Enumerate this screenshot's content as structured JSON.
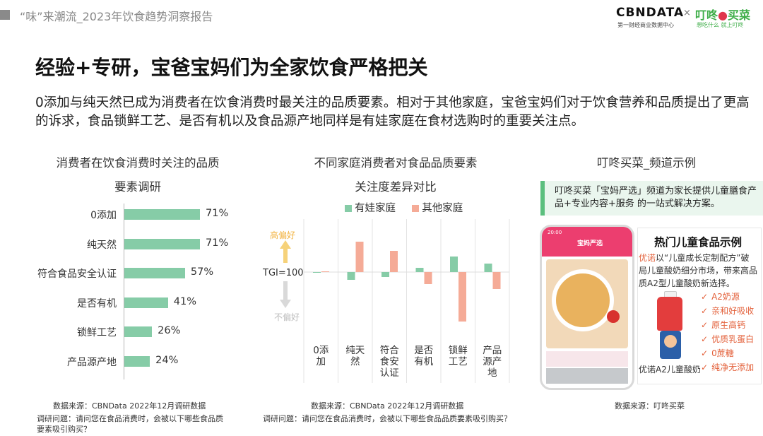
{
  "header": {
    "report_title": "“味”来潮流_2023年饮食趋势洞察报告",
    "logo_cbn": "CBNDATA",
    "logo_cbn_sub": "第一财经商业数据中心",
    "logo_x": "×",
    "logo_dd_a": "叮咚",
    "logo_dd_b": "买菜",
    "logo_dd_sub": "想吃什么 就上叮咚"
  },
  "main_title": "经验+专研，宝爸宝妈们为全家饮食严格把关",
  "intro_text": "0添加与纯天然已成为消费者在饮食消费时最关注的品质要素。相对于其他家庭，宝爸宝妈们对于饮食营养和品质提出了更高的诉求，食品锁鲜工艺、是否有机以及食品源产地同样是有娃家庭在食材选购时的重要关注点。",
  "colors": {
    "green": "#86cca7",
    "salmon": "#f5ab97",
    "accent": "#5bbf7e",
    "orange": "#e3603a"
  },
  "chart_data": [
    {
      "type": "bar",
      "orientation": "horizontal",
      "title_line1": "消费者在饮食消费时关注的品质",
      "title_line2": "要素调研",
      "categories": [
        "0添加",
        "纯天然",
        "符合食品安全认证",
        "是否有机",
        "锁鲜工艺",
        "产品源产地"
      ],
      "values": [
        71,
        71,
        57,
        41,
        26,
        24
      ],
      "value_labels": [
        "71%",
        "71%",
        "57%",
        "41%",
        "26%",
        "24%"
      ],
      "xlim": [
        0,
        100
      ],
      "source": "数据来源：CBNData 2022年12月调研数据",
      "question": "调研问题：请问您在食品消费时，会被以下哪些食品质要素吸引购买？"
    },
    {
      "type": "bar",
      "title_line1": "不同家庭消费者对食品品质要素",
      "title_line2": "关注度差异对比",
      "baseline_label": "TGI=100",
      "high_label": "高偏好",
      "low_label": "不偏好",
      "categories": [
        "0添加",
        "纯天然",
        "符合食安认证",
        "是否有机",
        "锁鲜工艺",
        "产品源产地"
      ],
      "category_lines": [
        [
          "0添",
          "加"
        ],
        [
          "纯天",
          "然"
        ],
        [
          "符合",
          "食安",
          "认证"
        ],
        [
          "是否",
          "有机"
        ],
        [
          "锁鲜",
          "工艺"
        ],
        [
          "产品",
          "源产",
          "地"
        ]
      ],
      "baseline": 100,
      "series": [
        {
          "name": "有娃家庭",
          "values": [
            100,
            89,
            93,
            106,
            122,
            112
          ]
        },
        {
          "name": "其他家庭",
          "values": [
            101,
            143,
            130,
            83,
            30,
            76
          ]
        }
      ],
      "ylim": [
        20,
        170
      ],
      "source": "数据来源：CBNData 2022年12月调研数据",
      "question": "调研问题：请问您在食品消费时，会被以下哪些食品品质要素吸引购买？"
    }
  ],
  "example": {
    "title": "叮咚买菜_频道示例",
    "callout": "叮咚买菜「宝妈严选」频道为家长提供儿童膳食产品+专业内容+服务 的一站式解决方案。",
    "card_title": "热门儿童食品示例",
    "brand": "优诺",
    "desc": "以“儿童成长定制配方”破局儿童酸奶细分市场，带来高品质A2型儿童酸奶新选择。",
    "features": [
      "A2奶源",
      "亲和好吸收",
      "原生高钙",
      "优质乳蛋白",
      "0蔗糖",
      "纯净无添加"
    ],
    "check_mark": "✓",
    "product_name": "优诺A2儿童酸奶",
    "source": "数据来源：叮咚买菜",
    "phone_time": "20:00",
    "phone_banner": "宝妈严选"
  }
}
